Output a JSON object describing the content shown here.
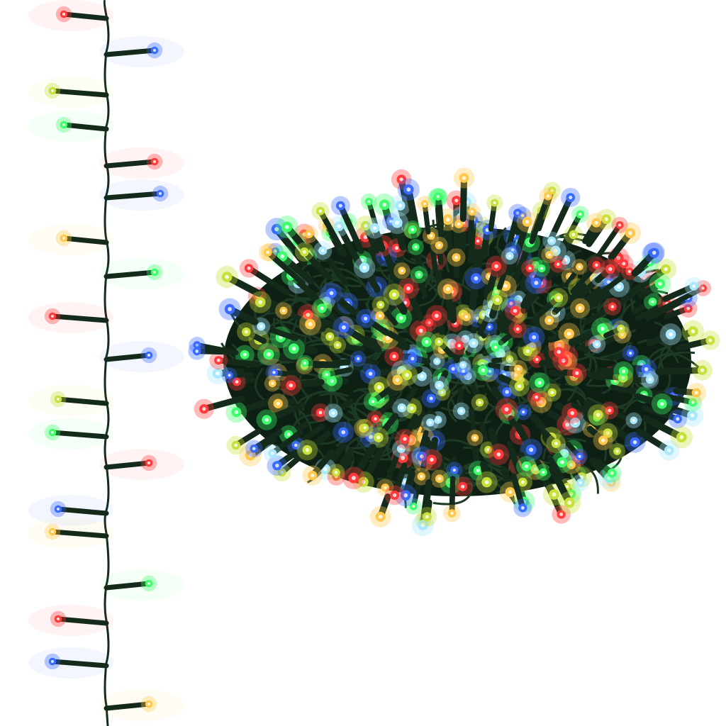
{
  "product": {
    "description_visible_text": "",
    "wire_color": "#142a1a",
    "led_palette": {
      "red": "#ff3a3a",
      "blue": "#3a6bff",
      "green": "#3dff6a",
      "yellow": "#ffc84a",
      "yellow_green": "#c8e03a",
      "white_blue": "#a8e8ff"
    },
    "hanging_strand_led_colors": [
      "red",
      "blue",
      "yellow_green",
      "green",
      "red",
      "blue",
      "yellow",
      "green",
      "red",
      "blue",
      "yellow_green",
      "green",
      "red",
      "blue",
      "yellow",
      "green",
      "red",
      "blue",
      "yellow"
    ]
  }
}
